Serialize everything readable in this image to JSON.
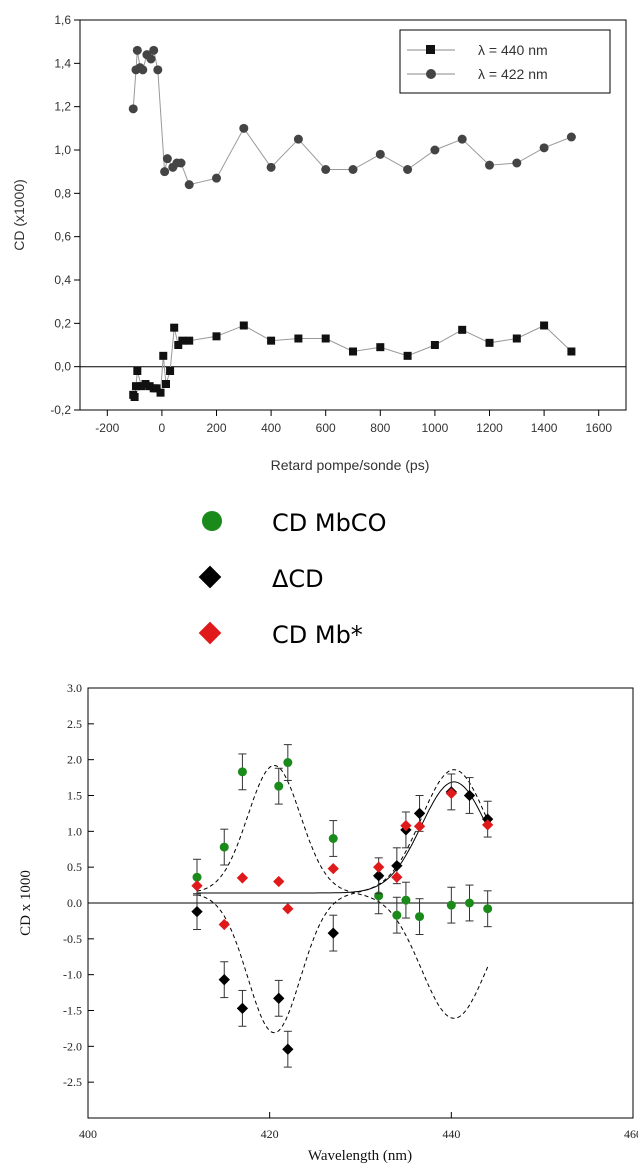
{
  "chart_data": [
    {
      "type": "line",
      "xlabel": "Retard pompe/sonde (ps)",
      "ylabel": "CD (x1000)",
      "xlim": [
        -300,
        1700
      ],
      "ylim": [
        -0.2,
        1.6
      ],
      "xticks": [
        "-200",
        "0",
        "200",
        "400",
        "600",
        "800",
        "1000",
        "1200",
        "1400",
        "1600"
      ],
      "yticks": [
        "-0,2",
        "0,0",
        "0,2",
        "0,4",
        "0,6",
        "0,8",
        "1,0",
        "1,2",
        "1,4",
        "1,6"
      ],
      "legend_position": "top-right",
      "zero_line": true,
      "series": [
        {
          "name": "λ = 440 nm",
          "marker": "square",
          "color": "#111111",
          "x": [
            -105,
            -100,
            -95,
            -90,
            -75,
            -60,
            -45,
            -30,
            -20,
            -5,
            5,
            15,
            30,
            45,
            60,
            75,
            100,
            200,
            300,
            400,
            500,
            600,
            700,
            800,
            900,
            1000,
            1100,
            1200,
            1300,
            1400,
            1500
          ],
          "y": [
            -0.13,
            -0.14,
            -0.09,
            -0.02,
            -0.09,
            -0.08,
            -0.09,
            -0.1,
            -0.1,
            -0.12,
            0.05,
            -0.08,
            -0.02,
            0.18,
            0.1,
            0.12,
            0.12,
            0.14,
            0.19,
            0.12,
            0.13,
            0.13,
            0.07,
            0.09,
            0.05,
            0.1,
            0.17,
            0.11,
            0.13,
            0.19,
            0.07
          ]
        },
        {
          "name": "λ = 422 nm",
          "marker": "circle",
          "color": "#444444",
          "x": [
            -105,
            -95,
            -90,
            -80,
            -70,
            -55,
            -40,
            -30,
            -15,
            10,
            20,
            40,
            55,
            70,
            100,
            200,
            300,
            400,
            500,
            600,
            700,
            800,
            900,
            1000,
            1100,
            1200,
            1300,
            1400,
            1500
          ],
          "y": [
            1.19,
            1.37,
            1.46,
            1.38,
            1.37,
            1.44,
            1.42,
            1.46,
            1.37,
            0.9,
            0.96,
            0.92,
            0.94,
            0.94,
            0.84,
            0.87,
            1.1,
            0.92,
            1.05,
            0.91,
            0.91,
            0.98,
            0.91,
            1.0,
            1.05,
            0.93,
            0.94,
            1.01,
            1.06
          ]
        }
      ]
    },
    {
      "type": "scatter",
      "xlabel": "Wavelength (nm)",
      "ylabel": "CD x 1000",
      "xlim": [
        400,
        460
      ],
      "ylim": [
        -3.0,
        3.0
      ],
      "xticks": [
        "400",
        "420",
        "440",
        "460"
      ],
      "yticks": [
        "-2.5",
        "-2.0",
        "-1.5",
        "-1.0",
        "-0.5",
        "0.0",
        "0.5",
        "1.0",
        "1.5",
        "2.0",
        "2.5",
        "3.0"
      ],
      "legend_position": "above",
      "zero_line": true,
      "series": [
        {
          "name": "CD MbCO",
          "marker": "circle",
          "color": "#1a8a1a",
          "x": [
            412,
            415,
            417,
            421,
            422,
            427,
            432,
            434,
            435,
            436.5,
            440,
            442,
            444
          ],
          "y": [
            0.36,
            0.78,
            1.83,
            1.63,
            1.96,
            0.9,
            0.1,
            -0.17,
            0.04,
            -0.19,
            -0.03,
            0.0,
            -0.08
          ],
          "err": [
            0.25,
            0.25,
            0.25,
            0.25,
            0.25,
            0.25,
            0.25,
            0.25,
            0.25,
            0.25,
            0.25,
            0.25,
            0.25
          ]
        },
        {
          "name": "ΔCD",
          "marker": "diamond",
          "color": "#000000",
          "x": [
            412,
            415,
            417,
            421,
            422,
            427,
            432,
            434,
            435,
            436.5,
            440,
            442,
            444
          ],
          "y": [
            -0.12,
            -1.07,
            -1.47,
            -1.33,
            -2.04,
            -0.42,
            0.38,
            0.52,
            1.02,
            1.25,
            1.55,
            1.5,
            1.17
          ],
          "err": [
            0.25,
            0.25,
            0.25,
            0.25,
            0.25,
            0.25,
            0.25,
            0.25,
            0.25,
            0.25,
            0.25,
            0.25,
            0.25
          ]
        },
        {
          "name": "CD Mb*",
          "marker": "diamond",
          "color": "#e01a1a",
          "x": [
            412,
            415,
            417,
            421,
            422,
            427,
            432,
            434,
            435,
            436.5,
            440,
            444
          ],
          "y": [
            0.24,
            -0.3,
            0.35,
            0.3,
            -0.08,
            0.48,
            0.5,
            0.36,
            1.08,
            1.07,
            1.53,
            1.09
          ]
        }
      ]
    }
  ]
}
